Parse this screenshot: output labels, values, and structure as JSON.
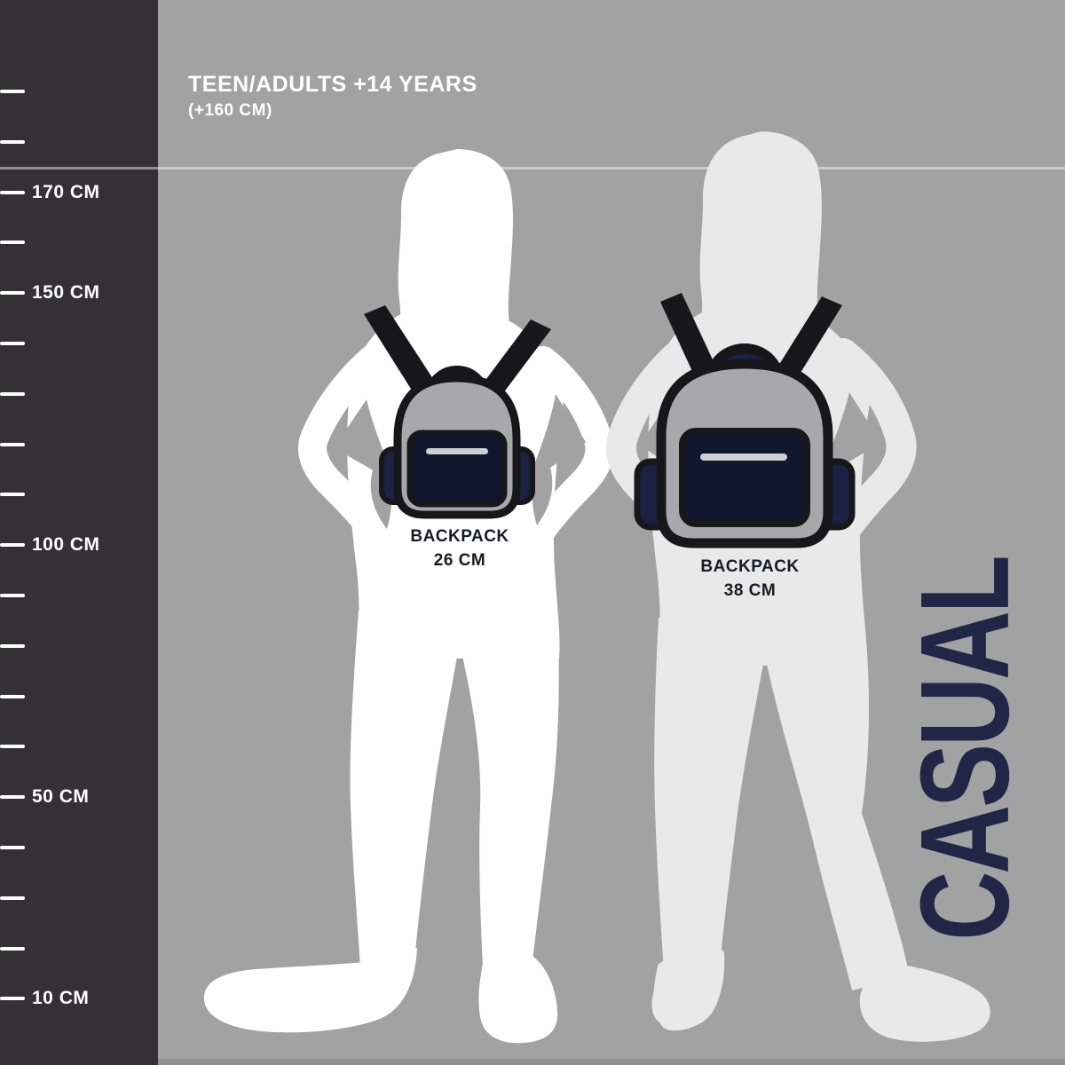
{
  "header": {
    "title": "TEEN/ADULTS +14 YEARS",
    "subtitle": "(+160 CM)"
  },
  "ruler": {
    "unit": "CM",
    "ticks": [
      {
        "value": 190,
        "label": null
      },
      {
        "value": 180,
        "label": null
      },
      {
        "value": 170,
        "label": "170 CM"
      },
      {
        "value": 160,
        "label": null
      },
      {
        "value": 150,
        "label": "150 CM"
      },
      {
        "value": 140,
        "label": null
      },
      {
        "value": 130,
        "label": null
      },
      {
        "value": 120,
        "label": null
      },
      {
        "value": 110,
        "label": null
      },
      {
        "value": 100,
        "label": "100 CM"
      },
      {
        "value": 90,
        "label": null
      },
      {
        "value": 80,
        "label": null
      },
      {
        "value": 70,
        "label": null
      },
      {
        "value": 60,
        "label": null
      },
      {
        "value": 50,
        "label": "50 CM"
      },
      {
        "value": 40,
        "label": null
      },
      {
        "value": 30,
        "label": null
      },
      {
        "value": 20,
        "label": null
      },
      {
        "value": 10,
        "label": "10 CM"
      }
    ]
  },
  "backpacks": [
    {
      "label_line1": "BACKPACK",
      "label_line2": "26 CM",
      "size_cm": 26
    },
    {
      "label_line1": "BACKPACK",
      "label_line2": "38 CM",
      "size_cm": 38
    }
  ],
  "side_label": {
    "text": "CASUAL"
  },
  "colors": {
    "background": "#a2a2a2",
    "left_panel": "#333134",
    "figure_left": "#ffffff",
    "figure_right": "#e9e9e9",
    "backpack_body": "#a8a8aa",
    "backpack_pocket_navy": "#11162f",
    "backpack_outline": "#17161a",
    "handle_navy": "#1b2142",
    "zipper": "#cdced1",
    "accent_navy": "#212647"
  }
}
